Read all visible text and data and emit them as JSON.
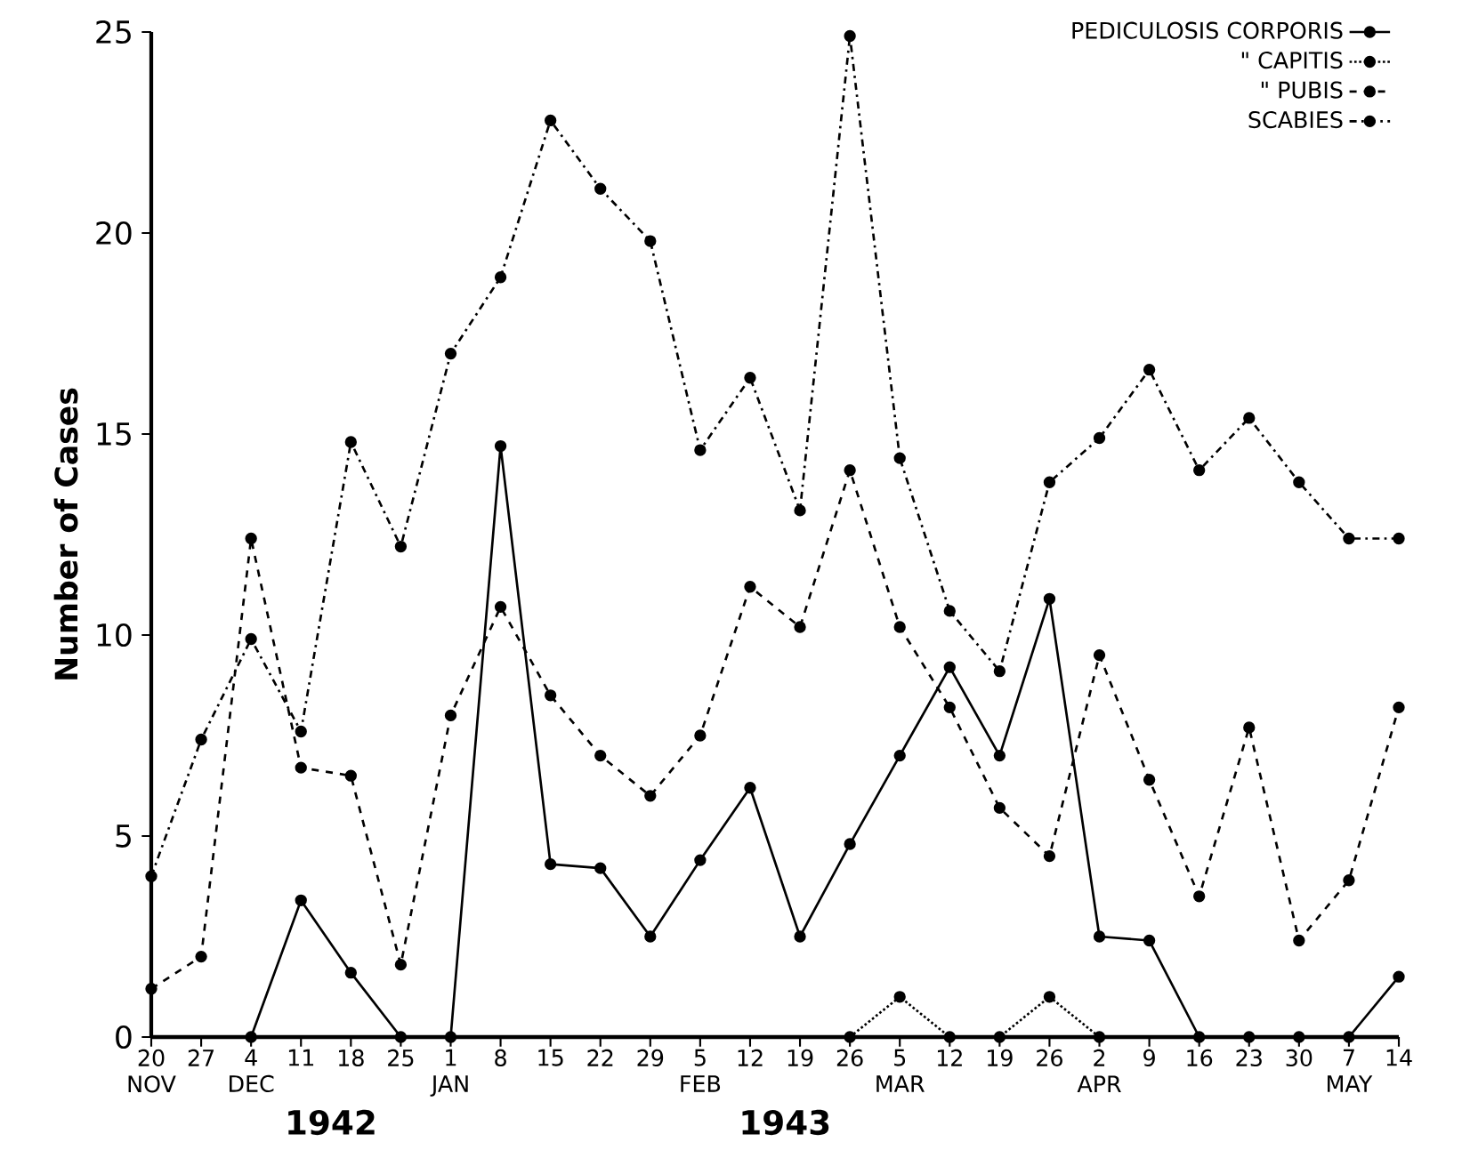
{
  "chart_data": {
    "type": "line",
    "ylabel": "Number of Cases",
    "categories": [
      "20 NOV",
      "27",
      "4 DEC",
      "11",
      "18",
      "25",
      "1 JAN",
      "8",
      "15",
      "22",
      "29",
      "5 FEB",
      "12",
      "19",
      "26",
      "5 MAR",
      "12",
      "19",
      "26",
      "2 APR",
      "9",
      "16",
      "23",
      "30",
      "7 MAY",
      "14"
    ],
    "series": [
      {
        "name": "PEDICULOSIS CORPORIS",
        "color": "#000000",
        "line_style": "solid",
        "values": [
          null,
          null,
          0,
          3.4,
          1.6,
          0,
          0,
          14.7,
          4.3,
          4.2,
          2.5,
          4.4,
          6.2,
          2.5,
          4.8,
          7.0,
          9.2,
          7.0,
          10.9,
          2.5,
          2.4,
          0,
          0,
          0,
          0,
          1.5
        ]
      },
      {
        "name": "\" CAPITIS",
        "color": "#000000",
        "line_style": "dotted",
        "values": [
          null,
          null,
          null,
          null,
          null,
          null,
          null,
          null,
          null,
          null,
          null,
          null,
          null,
          null,
          0,
          1,
          0,
          0,
          1,
          0,
          null,
          null,
          null,
          null,
          null,
          null
        ]
      },
      {
        "name": "\" PUBIS",
        "color": "#000000",
        "line_style": "dashed",
        "values": [
          1.2,
          2.0,
          12.4,
          6.7,
          6.5,
          1.8,
          8.0,
          10.7,
          8.5,
          7.0,
          6.0,
          7.5,
          11.2,
          10.2,
          14.1,
          10.2,
          8.2,
          5.7,
          4.5,
          9.5,
          6.4,
          3.5,
          7.7,
          2.4,
          3.9,
          8.2
        ]
      },
      {
        "name": "SCABIES",
        "color": "#000000",
        "line_style": "dashdot",
        "values": [
          4.0,
          7.4,
          9.9,
          7.6,
          14.8,
          12.2,
          17.0,
          18.9,
          22.8,
          21.1,
          19.8,
          14.6,
          16.4,
          13.1,
          24.9,
          14.4,
          10.6,
          9.1,
          13.8,
          14.9,
          16.6,
          14.1,
          15.4,
          13.8,
          12.4,
          12.4
        ]
      }
    ],
    "ylim": [
      0,
      25
    ],
    "yticks": [
      0,
      5,
      10,
      15,
      20,
      25
    ],
    "grid": false,
    "legend": "top right",
    "marker": "circle",
    "annotations": [
      "1942",
      "1943"
    ]
  }
}
